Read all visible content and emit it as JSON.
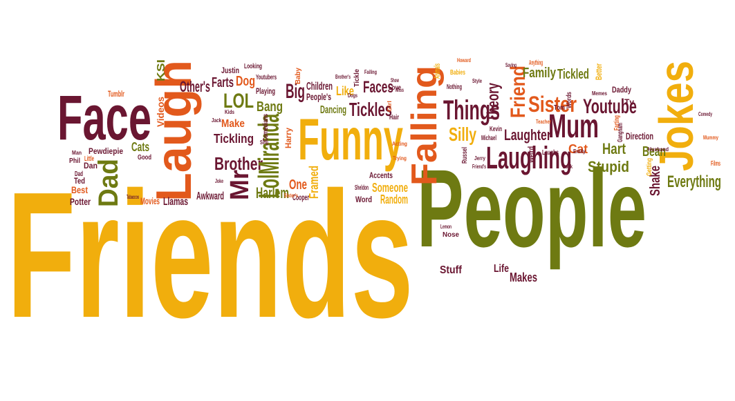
{
  "palette": {
    "yellow": "#f1ae0d",
    "olive": "#6e7a12",
    "maroon": "#6a1631",
    "orange": "#e2591c",
    "background": "#ffffff"
  },
  "words": [
    {
      "id": "friends",
      "text": "Friends",
      "color": "yellow"
    },
    {
      "id": "people",
      "text": "People",
      "color": "olive"
    },
    {
      "id": "face",
      "text": "Face",
      "color": "maroon"
    },
    {
      "id": "laugh",
      "text": "Laugh",
      "color": "orange"
    },
    {
      "id": "funny",
      "text": "Funny",
      "color": "yellow"
    },
    {
      "id": "jokes",
      "text": "Jokes",
      "color": "yellow"
    },
    {
      "id": "falling",
      "text": "Falling",
      "color": "orange"
    },
    {
      "id": "mum",
      "text": "Mum",
      "color": "maroon"
    },
    {
      "id": "laughing",
      "text": "Laughing",
      "color": "maroon"
    },
    {
      "id": "things",
      "text": "Things",
      "color": "maroon"
    },
    {
      "id": "youtube",
      "text": "Youtube",
      "color": "maroon"
    },
    {
      "id": "sister",
      "text": "Sister",
      "color": "orange"
    },
    {
      "id": "friend",
      "text": "Friend",
      "color": "orange"
    },
    {
      "id": "dad",
      "text": "Dad",
      "color": "olive"
    },
    {
      "id": "lol",
      "text": "LOL",
      "color": "olive"
    },
    {
      "id": "big",
      "text": "Big",
      "color": "maroon"
    },
    {
      "id": "tickles",
      "text": "Tickles",
      "color": "maroon"
    },
    {
      "id": "faces",
      "text": "Faces",
      "color": "maroon"
    },
    {
      "id": "brother",
      "text": "Brother",
      "color": "maroon"
    },
    {
      "id": "lolmiranda",
      "text": "LolMiranda",
      "color": "olive"
    },
    {
      "id": "mr",
      "text": "Mr",
      "color": "maroon"
    },
    {
      "id": "bang",
      "text": "Bang",
      "color": "olive"
    },
    {
      "id": "tickling",
      "text": "Tickling",
      "color": "maroon"
    },
    {
      "id": "silly",
      "text": "Silly",
      "color": "yellow"
    },
    {
      "id": "laughter",
      "text": "Laughter",
      "color": "maroon"
    },
    {
      "id": "family",
      "text": "Family",
      "color": "olive"
    },
    {
      "id": "tickled",
      "text": "Tickled",
      "color": "olive"
    },
    {
      "id": "everything",
      "text": "Everything",
      "color": "olive"
    },
    {
      "id": "stupid",
      "text": "Stupid",
      "color": "olive"
    },
    {
      "id": "hart",
      "text": "Hart",
      "color": "olive"
    },
    {
      "id": "cat",
      "text": "Cat",
      "color": "orange"
    },
    {
      "id": "bean",
      "text": "Bean",
      "color": "olive"
    },
    {
      "id": "shake",
      "text": "Shake",
      "color": "maroon"
    },
    {
      "id": "dog",
      "text": "Dog",
      "color": "orange"
    },
    {
      "id": "farts",
      "text": "Farts",
      "color": "maroon"
    },
    {
      "id": "others",
      "text": "Other's",
      "color": "maroon"
    },
    {
      "id": "ksi",
      "text": "KSI",
      "color": "olive"
    },
    {
      "id": "make",
      "text": "Make",
      "color": "orange"
    },
    {
      "id": "harlem",
      "text": "Harlem",
      "color": "olive"
    },
    {
      "id": "one",
      "text": "One",
      "color": "orange"
    },
    {
      "id": "framed",
      "text": "Framed",
      "color": "yellow"
    },
    {
      "id": "someone",
      "text": "Someone",
      "color": "yellow"
    },
    {
      "id": "random",
      "text": "Random",
      "color": "yellow"
    },
    {
      "id": "theory",
      "text": "Theory",
      "color": "maroon"
    },
    {
      "id": "like",
      "text": "Like",
      "color": "yellow"
    },
    {
      "id": "dancing",
      "text": "Dancing",
      "color": "olive"
    },
    {
      "id": "children",
      "text": "Children",
      "color": "maroon"
    },
    {
      "id": "peoples",
      "text": "People's",
      "color": "maroon"
    },
    {
      "id": "stuff",
      "text": "Stuff",
      "color": "maroon"
    },
    {
      "id": "life",
      "text": "Life",
      "color": "maroon"
    },
    {
      "id": "makes",
      "text": "Makes",
      "color": "maroon"
    },
    {
      "id": "direction",
      "text": "Direction",
      "color": "maroon"
    },
    {
      "id": "cats",
      "text": "Cats",
      "color": "olive"
    },
    {
      "id": "dan",
      "text": "Dan",
      "color": "maroon"
    },
    {
      "id": "pewdiepie",
      "text": "Pewdiepie",
      "color": "maroon"
    },
    {
      "id": "awkward",
      "text": "Awkward",
      "color": "maroon"
    },
    {
      "id": "llamas",
      "text": "Llamas",
      "color": "maroon"
    },
    {
      "id": "potter",
      "text": "Potter",
      "color": "maroon"
    },
    {
      "id": "best",
      "text": "Best",
      "color": "orange"
    },
    {
      "id": "ted",
      "text": "Ted",
      "color": "maroon"
    },
    {
      "id": "movies",
      "text": "Movies",
      "color": "orange"
    },
    {
      "id": "accents",
      "text": "Accents",
      "color": "maroon"
    },
    {
      "id": "word",
      "text": "Word",
      "color": "maroon"
    },
    {
      "id": "cooper",
      "text": "Cooper",
      "color": "maroon"
    },
    {
      "id": "justin",
      "text": "Justin",
      "color": "maroon"
    },
    {
      "id": "playing",
      "text": "Playing",
      "color": "maroon"
    },
    {
      "id": "youtubers",
      "text": "Youtubers",
      "color": "maroon"
    },
    {
      "id": "looking",
      "text": "Looking",
      "color": "maroon"
    },
    {
      "id": "tumblr",
      "text": "Tumblr",
      "color": "orange"
    },
    {
      "id": "videos",
      "text": "Videos",
      "color": "orange"
    },
    {
      "id": "good",
      "text": "Good",
      "color": "maroon"
    },
    {
      "id": "little",
      "text": "Little",
      "color": "orange"
    },
    {
      "id": "phil",
      "text": "Phil",
      "color": "maroon"
    },
    {
      "id": "dad2",
      "text": "Dad",
      "color": "maroon"
    },
    {
      "id": "man",
      "text": "Man",
      "color": "maroon"
    },
    {
      "id": "comedians",
      "text": "Comedians",
      "color": "maroon"
    },
    {
      "id": "harry",
      "text": "Harry",
      "color": "orange"
    },
    {
      "id": "jack",
      "text": "Jack",
      "color": "maroon"
    },
    {
      "id": "kids",
      "text": "Kids",
      "color": "maroon"
    },
    {
      "id": "baby",
      "text": "Baby",
      "color": "orange"
    },
    {
      "id": "love",
      "text": "Love",
      "color": "maroon"
    },
    {
      "id": "tickle",
      "text": "Tickle",
      "color": "maroon"
    },
    {
      "id": "dogs",
      "text": "Dogs",
      "color": "maroon"
    },
    {
      "id": "failing",
      "text": "Failing",
      "color": "maroon"
    },
    {
      "id": "brothers",
      "text": "Brother's",
      "color": "maroon"
    },
    {
      "id": "show",
      "text": "Show",
      "color": "maroon"
    },
    {
      "id": "miss",
      "text": "Miss",
      "color": "maroon"
    },
    {
      "id": "girl",
      "text": "Girl",
      "color": "orange"
    },
    {
      "id": "hair",
      "text": "Hair",
      "color": "maroon"
    },
    {
      "id": "babies",
      "text": "Babies",
      "color": "yellow"
    },
    {
      "id": "nothing",
      "text": "Nothing",
      "color": "maroon"
    },
    {
      "id": "style",
      "text": "Style",
      "color": "maroon"
    },
    {
      "id": "howard",
      "text": "Howard",
      "color": "orange"
    },
    {
      "id": "saying",
      "text": "Saying",
      "color": "maroon"
    },
    {
      "id": "anything",
      "text": "Anything",
      "color": "orange"
    },
    {
      "id": "animals",
      "text": "Animals",
      "color": "yellow"
    },
    {
      "id": "words",
      "text": "Words",
      "color": "maroon"
    },
    {
      "id": "better",
      "text": "Better",
      "color": "yellow"
    },
    {
      "id": "tv",
      "text": "Tv",
      "color": "maroon"
    },
    {
      "id": "memes",
      "text": "Memes",
      "color": "maroon"
    },
    {
      "id": "daddy",
      "text": "Daddy",
      "color": "maroon"
    },
    {
      "id": "tom",
      "text": "Tom",
      "color": "maroon"
    },
    {
      "id": "teacher",
      "text": "Teacher",
      "color": "orange"
    },
    {
      "id": "farting",
      "text": "Farting",
      "color": "orange"
    },
    {
      "id": "kevin",
      "text": "Kevin",
      "color": "maroon"
    },
    {
      "id": "russel",
      "text": "Russel",
      "color": "maroon"
    },
    {
      "id": "michael",
      "text": "Michael",
      "color": "maroon"
    },
    {
      "id": "weird",
      "text": "Weird",
      "color": "maroon"
    },
    {
      "id": "laughs",
      "text": "Laughs",
      "color": "maroon"
    },
    {
      "id": "emily",
      "text": "Emily",
      "color": "maroon"
    },
    {
      "id": "gangnam",
      "text": "Gangnam",
      "color": "maroon"
    },
    {
      "id": "getting",
      "text": "Getting",
      "color": "yellow"
    },
    {
      "id": "husband",
      "text": "Husband",
      "color": "maroon"
    },
    {
      "id": "mummy",
      "text": "Mummy",
      "color": "orange"
    },
    {
      "id": "films",
      "text": "Films",
      "color": "orange"
    },
    {
      "id": "comedy",
      "text": "Comedy",
      "color": "maroon"
    },
    {
      "id": "sheldon",
      "text": "Sheldon",
      "color": "maroon"
    },
    {
      "id": "jerry",
      "text": "Jerry",
      "color": "maroon"
    },
    {
      "id": "lemon",
      "text": "Lemon",
      "color": "maroon"
    },
    {
      "id": "nose",
      "text": "Nose",
      "color": "maroon"
    },
    {
      "id": "friends2",
      "text": "Friend's",
      "color": "maroon"
    },
    {
      "id": "acting",
      "text": "Acting",
      "color": "orange"
    },
    {
      "id": "trying",
      "text": "Trying",
      "color": "orange"
    },
    {
      "id": "look",
      "text": "Look",
      "color": "maroon"
    },
    {
      "id": "sisters",
      "text": "Sister's",
      "color": "orange"
    },
    {
      "id": "joke",
      "text": "Joke",
      "color": "maroon"
    },
    {
      "id": "tabaccos",
      "text": "Tabaccos",
      "color": "maroon"
    },
    {
      "id": "sing",
      "text": "Sing",
      "color": "maroon"
    }
  ]
}
